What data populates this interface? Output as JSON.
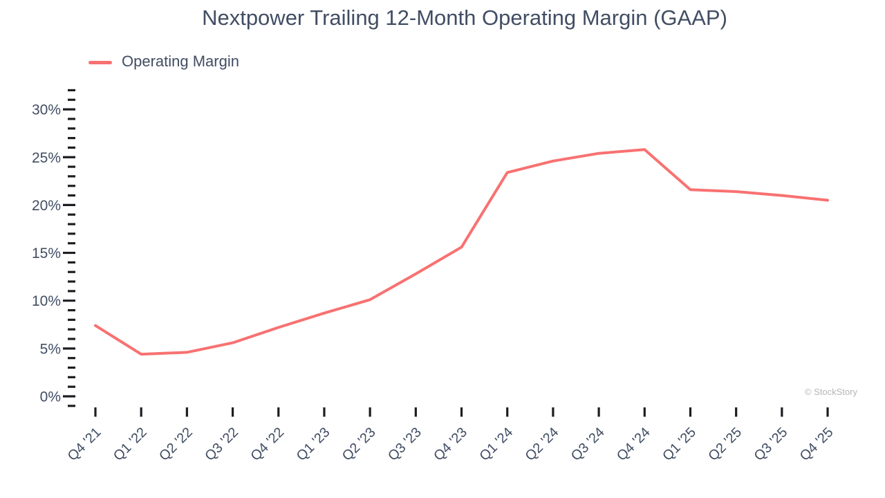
{
  "header": {
    "title": "Nextpower Trailing 12-Month Operating Margin (GAAP)"
  },
  "legend": {
    "label": "Operating Margin",
    "swatch_color": "#f87171"
  },
  "watermark": "© StockStory",
  "colors": {
    "line": "#f87171",
    "text": "#414d63",
    "tick": "#1c1e21",
    "watermark": "#b4b6ba"
  },
  "chart_data": {
    "type": "line",
    "title": "Nextpower Trailing 12-Month Operating Margin (GAAP)",
    "categories": [
      "Q4 '21",
      "Q1 '22",
      "Q2 '22",
      "Q3 '22",
      "Q4 '22",
      "Q1 '23",
      "Q2 '23",
      "Q3 '23",
      "Q4 '23",
      "Q1 '24",
      "Q2 '24",
      "Q3 '24",
      "Q4 '24",
      "Q1 '25",
      "Q2 '25",
      "Q3 '25",
      "Q4 '25"
    ],
    "series": [
      {
        "name": "Operating Margin",
        "unit": "%",
        "values": [
          7.4,
          4.4,
          4.6,
          5.6,
          7.2,
          8.7,
          10.1,
          12.8,
          15.6,
          23.4,
          24.6,
          25.4,
          25.8,
          21.6,
          21.4,
          21.0,
          20.5
        ]
      }
    ],
    "xlabel": "",
    "ylabel": "",
    "ylim": [
      -1,
      32
    ],
    "ytick_major": [
      0,
      5,
      10,
      15,
      20,
      25,
      30
    ],
    "ytick_major_labels": [
      "0%",
      "5%",
      "10%",
      "15%",
      "20%",
      "25%",
      "30%"
    ],
    "ytick_minor_step": 1,
    "grid": false,
    "legend_position": "top-left"
  }
}
